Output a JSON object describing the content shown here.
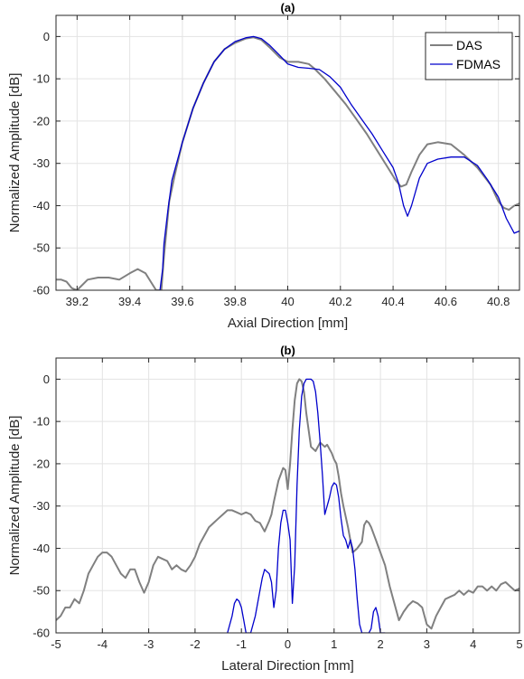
{
  "chart_data": [
    {
      "type": "line",
      "title": "(a)",
      "xlabel": "Axial Direction [mm]",
      "ylabel": "Normalized Amplitude [dB]",
      "xlim": [
        39.12,
        40.88
      ],
      "ylim": [
        -60,
        5
      ],
      "xticks": [
        39.2,
        39.4,
        39.6,
        39.8,
        40,
        40.2,
        40.4,
        40.6,
        40.8
      ],
      "xtick_labels": [
        "39.2",
        "39.4",
        "39.6",
        "39.8",
        "40",
        "40.2",
        "40.4",
        "40.6",
        "40.8"
      ],
      "yticks": [
        -60,
        -50,
        -40,
        -30,
        -20,
        -10,
        0
      ],
      "ytick_labels": [
        "-60",
        "-50",
        "-40",
        "-30",
        "-20",
        "-10",
        "0"
      ],
      "grid": true,
      "legend_position": "top-right",
      "series": [
        {
          "name": "DAS",
          "color": "#808080",
          "x": [
            39.12,
            39.14,
            39.16,
            39.18,
            39.2,
            39.24,
            39.28,
            39.32,
            39.36,
            39.4,
            39.43,
            39.46,
            39.48,
            39.5,
            39.52,
            39.53,
            39.55,
            39.57,
            39.6,
            39.64,
            39.68,
            39.72,
            39.76,
            39.8,
            39.84,
            39.87,
            39.9,
            39.93,
            39.97,
            40.0,
            40.04,
            40.08,
            40.1,
            40.14,
            40.18,
            40.22,
            40.26,
            40.3,
            40.34,
            40.38,
            40.41,
            40.43,
            40.45,
            40.47,
            40.5,
            40.53,
            40.57,
            40.62,
            40.67,
            40.72,
            40.77,
            40.8,
            40.82,
            40.84,
            40.86,
            40.88
          ],
          "y": [
            -57.5,
            -57.5,
            -58,
            -59.5,
            -60,
            -57.5,
            -57,
            -57,
            -57.5,
            -56,
            -55,
            -56,
            -58,
            -60,
            -60,
            -52,
            -39,
            -33,
            -25,
            -17,
            -11,
            -6,
            -3,
            -1.5,
            -0.5,
            -0.2,
            -0.8,
            -2.5,
            -5,
            -6,
            -6,
            -6.5,
            -7.5,
            -10,
            -13,
            -16,
            -19.5,
            -23,
            -27,
            -31,
            -34,
            -35.5,
            -35,
            -32,
            -28,
            -25.5,
            -25,
            -25.5,
            -28,
            -31,
            -35,
            -39,
            -40.5,
            -41,
            -40,
            -39.5
          ]
        },
        {
          "name": "FDMAS",
          "color": "#0000cc",
          "x": [
            39.515,
            39.525,
            39.53,
            39.545,
            39.56,
            39.6,
            39.64,
            39.68,
            39.72,
            39.76,
            39.8,
            39.84,
            39.87,
            39.9,
            39.93,
            39.97,
            40.0,
            40.04,
            40.08,
            40.12,
            40.16,
            40.2,
            40.24,
            40.28,
            40.32,
            40.36,
            40.4,
            40.42,
            40.44,
            40.455,
            40.47,
            40.5,
            40.53,
            40.57,
            40.62,
            40.67,
            40.72,
            40.76,
            40.8,
            40.83,
            40.86,
            40.88
          ],
          "y": [
            -60,
            -55,
            -49,
            -41,
            -34,
            -25,
            -17,
            -11,
            -6,
            -3,
            -1.2,
            -0.3,
            0,
            -0.5,
            -2,
            -4.5,
            -6.5,
            -7.3,
            -7.5,
            -7.8,
            -9.5,
            -12,
            -16,
            -19.5,
            -23,
            -27,
            -31,
            -34.5,
            -40,
            -42.5,
            -40,
            -33.5,
            -30,
            -29,
            -28.5,
            -28.5,
            -30.5,
            -34,
            -38,
            -43,
            -46.5,
            -46
          ]
        }
      ]
    },
    {
      "type": "line",
      "title": "(b)",
      "xlabel": "Lateral Direction [mm]",
      "ylabel": "Normalized Amplitude [dB]",
      "xlim": [
        -5,
        5
      ],
      "ylim": [
        -60,
        5
      ],
      "xticks": [
        -5,
        -4,
        -3,
        -2,
        -1,
        0,
        1,
        2,
        3,
        4,
        5
      ],
      "xtick_labels": [
        "-5",
        "-4",
        "-3",
        "-2",
        "-1",
        "0",
        "1",
        "2",
        "3",
        "4",
        "5"
      ],
      "yticks": [
        -60,
        -50,
        -40,
        -30,
        -20,
        -10,
        0
      ],
      "ytick_labels": [
        "-60",
        "-50",
        "-40",
        "-30",
        "-20",
        "-10",
        "0"
      ],
      "grid": true,
      "series": [
        {
          "color": "#808080",
          "x": [
            -5,
            -4.9,
            -4.8,
            -4.7,
            -4.6,
            -4.5,
            -4.4,
            -4.3,
            -4.2,
            -4.1,
            -4.0,
            -3.9,
            -3.8,
            -3.7,
            -3.6,
            -3.5,
            -3.4,
            -3.3,
            -3.2,
            -3.1,
            -3.0,
            -2.9,
            -2.8,
            -2.7,
            -2.6,
            -2.5,
            -2.4,
            -2.3,
            -2.2,
            -2.1,
            -2.0,
            -1.9,
            -1.8,
            -1.7,
            -1.6,
            -1.5,
            -1.4,
            -1.3,
            -1.2,
            -1.1,
            -1.0,
            -0.9,
            -0.8,
            -0.7,
            -0.6,
            -0.5,
            -0.4,
            -0.35,
            -0.3,
            -0.2,
            -0.1,
            -0.05,
            0.0,
            0.05,
            0.1,
            0.15,
            0.2,
            0.25,
            0.3,
            0.35,
            0.4,
            0.5,
            0.6,
            0.7,
            0.8,
            0.85,
            0.9,
            0.95,
            1.0,
            1.05,
            1.1,
            1.15,
            1.2,
            1.3,
            1.4,
            1.5,
            1.6,
            1.65,
            1.7,
            1.75,
            1.8,
            1.9,
            2.0,
            2.1,
            2.2,
            2.3,
            2.4,
            2.5,
            2.6,
            2.7,
            2.8,
            2.9,
            3.0,
            3.1,
            3.2,
            3.3,
            3.4,
            3.5,
            3.6,
            3.7,
            3.8,
            3.9,
            4.0,
            4.1,
            4.2,
            4.3,
            4.4,
            4.5,
            4.6,
            4.7,
            4.8,
            4.9,
            5.0
          ],
          "y": [
            -57,
            -56,
            -54,
            -54,
            -52,
            -53,
            -50,
            -46,
            -44,
            -42,
            -41,
            -41,
            -42,
            -44,
            -46,
            -47,
            -45,
            -45,
            -48,
            -50.5,
            -48,
            -44,
            -42,
            -42.5,
            -43,
            -45,
            -44,
            -45,
            -45.5,
            -44,
            -42,
            -39,
            -37,
            -35,
            -34,
            -33,
            -32,
            -31,
            -31,
            -31.5,
            -32,
            -31.5,
            -32,
            -33.5,
            -34,
            -36,
            -33.5,
            -32,
            -29,
            -24,
            -21,
            -21.5,
            -26,
            -20,
            -12,
            -5,
            -1,
            0,
            -0.5,
            -3,
            -8,
            -16,
            -17,
            -15,
            -16,
            -15.5,
            -16.5,
            -17.5,
            -19,
            -20,
            -23,
            -27,
            -30,
            -35,
            -41,
            -40,
            -38.5,
            -34.5,
            -33.5,
            -34,
            -35,
            -38,
            -41,
            -44,
            -49,
            -53,
            -57,
            -55,
            -53.5,
            -52.5,
            -53,
            -54,
            -58,
            -59,
            -56,
            -54,
            -52,
            -51.5,
            -51,
            -50,
            -51,
            -50,
            -50.5,
            -49,
            -49,
            -50,
            -49,
            -50,
            -48.5,
            -48,
            -49,
            -50,
            -49.5
          ]
        },
        {
          "color": "#0000cc",
          "x": [
            -1.3,
            -1.2,
            -1.15,
            -1.1,
            -1.05,
            -1.0,
            -0.95,
            -0.9,
            -0.8,
            -0.7,
            -0.6,
            -0.55,
            -0.5,
            -0.45,
            -0.4,
            -0.35,
            -0.3,
            -0.25,
            -0.2,
            -0.15,
            -0.1,
            -0.05,
            0.0,
            0.05,
            0.1,
            0.15,
            0.2,
            0.25,
            0.3,
            0.35,
            0.4,
            0.45,
            0.5,
            0.55,
            0.6,
            0.65,
            0.7,
            0.75,
            0.8,
            0.85,
            0.9,
            0.95,
            1.0,
            1.05,
            1.1,
            1.15,
            1.2,
            1.25,
            1.3,
            1.35,
            1.4,
            1.45,
            1.5,
            1.55,
            1.6,
            1.65,
            1.7,
            1.75,
            1.8,
            1.85,
            1.9,
            1.95,
            2.0,
            2.05,
            2.1
          ],
          "y": [
            -60,
            -56,
            -53,
            -52,
            -52.5,
            -54,
            -57,
            -60,
            -60,
            -56,
            -50,
            -47,
            -45,
            -45.5,
            -46,
            -48,
            -54,
            -50,
            -40,
            -34,
            -31,
            -31,
            -34,
            -38,
            -53,
            -44,
            -25,
            -12,
            -4,
            -1,
            0,
            0,
            0,
            -0.5,
            -3,
            -8,
            -15,
            -23,
            -32,
            -30,
            -28,
            -25.5,
            -24.5,
            -25,
            -28,
            -33,
            -37,
            -38,
            -40,
            -38,
            -40,
            -45,
            -52,
            -58,
            -60,
            -60,
            -60,
            -60,
            -59,
            -55,
            -54,
            -56,
            -60,
            -60,
            -60
          ]
        }
      ]
    }
  ]
}
